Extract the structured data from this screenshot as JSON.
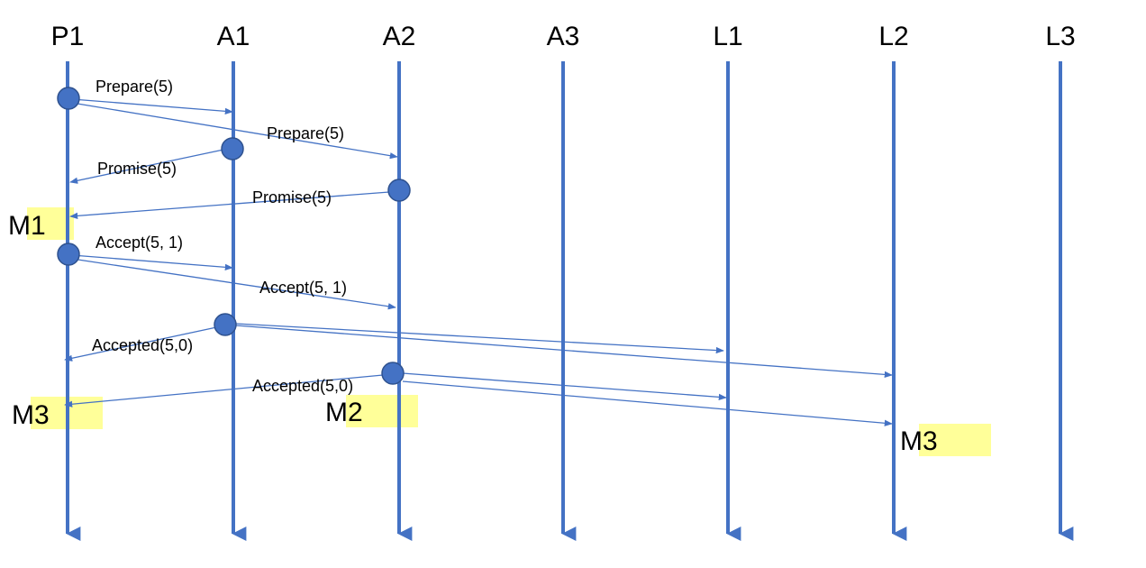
{
  "actors": [
    "P1",
    "A1",
    "A2",
    "A3",
    "L1",
    "L2",
    "L3"
  ],
  "colors": {
    "lifeline": "#4472C4",
    "node_fill": "#4472C4",
    "node_stroke": "#2F528F",
    "message": "#4472C4",
    "highlight": "#FFFF99"
  },
  "messages": [
    {
      "from": "P1",
      "to": "A1",
      "label": "Prepare(5)"
    },
    {
      "from": "P1",
      "to": "A2",
      "label": "Prepare(5)"
    },
    {
      "from": "A1",
      "to": "P1",
      "label": "Promise(5)"
    },
    {
      "from": "A2",
      "to": "P1",
      "label": "Promise(5)"
    },
    {
      "from": "P1",
      "to": "A1",
      "label": "Accept(5, 1)"
    },
    {
      "from": "P1",
      "to": "A2",
      "label": "Accept(5, 1)"
    },
    {
      "from": "A1",
      "to": "P1",
      "label": "Accepted(5,0)"
    },
    {
      "from": "A1",
      "to": "L1",
      "label": ""
    },
    {
      "from": "A1",
      "to": "L2",
      "label": ""
    },
    {
      "from": "A2",
      "to": "P1",
      "label": "Accepted(5,0)"
    },
    {
      "from": "A2",
      "to": "L1",
      "label": ""
    },
    {
      "from": "A2",
      "to": "L2",
      "label": ""
    }
  ],
  "markers": [
    {
      "label": "M1",
      "actor": "P1"
    },
    {
      "label": "M3",
      "actor": "P1"
    },
    {
      "label": "M2",
      "actor": "A2"
    },
    {
      "label": "M3",
      "actor": "L2"
    }
  ]
}
